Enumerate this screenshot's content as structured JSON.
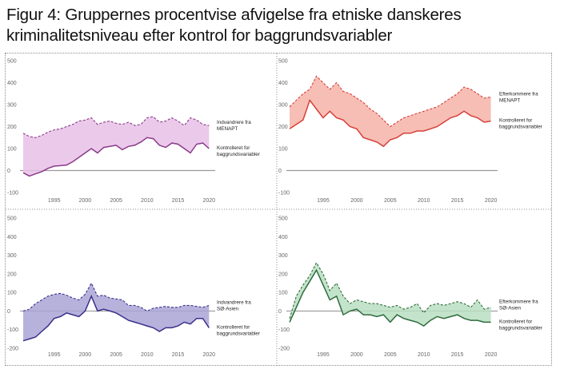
{
  "page_title": "Figur 4: Gruppernes procentvise afvigelse fra etniske danskeres kriminalitetsniveau efter kontrol for baggrundsvariabler",
  "chart_data": [
    {
      "type": "area",
      "panel": "top-left",
      "color": "#8a3a8a",
      "fill": "#e8bfe6",
      "x_ticks": [
        "1995",
        "2000",
        "2005",
        "2010",
        "2015",
        "2020"
      ],
      "y_ticks": [
        "500",
        "400",
        "300",
        "200",
        "100",
        "0",
        "-100"
      ],
      "ylim": [
        -100,
        500
      ],
      "xlim": [
        1990,
        2021
      ],
      "years": [
        1990,
        1991,
        1992,
        1993,
        1994,
        1995,
        1996,
        1997,
        1998,
        1999,
        2000,
        2001,
        2002,
        2003,
        2004,
        2005,
        2006,
        2007,
        2008,
        2009,
        2010,
        2011,
        2012,
        2013,
        2014,
        2015,
        2016,
        2017,
        2018,
        2019,
        2020
      ],
      "series": [
        {
          "name": "Indvandrere fra MENAPT",
          "style": "dashed",
          "values": [
            170,
            155,
            150,
            160,
            175,
            185,
            190,
            200,
            210,
            225,
            230,
            240,
            210,
            220,
            225,
            215,
            210,
            220,
            205,
            210,
            240,
            245,
            220,
            225,
            240,
            225,
            205,
            240,
            230,
            210,
            205
          ]
        },
        {
          "name": "Kontrolleret for baggrundsvariabler",
          "style": "solid",
          "values": [
            -10,
            -25,
            -15,
            -5,
            10,
            20,
            22,
            25,
            40,
            60,
            80,
            100,
            80,
            105,
            110,
            115,
            95,
            110,
            115,
            130,
            150,
            145,
            115,
            105,
            125,
            120,
            100,
            80,
            120,
            125,
            100
          ]
        }
      ],
      "label_top": [
        "Indvandrere fra",
        "MENAPT"
      ],
      "label_bottom": [
        "Kontrolleret for",
        "baggrundsvariabler"
      ]
    },
    {
      "type": "area",
      "panel": "top-right",
      "color": "#d6403a",
      "fill": "#f6b3a8",
      "x_ticks": [
        "1995",
        "2000",
        "2005",
        "2010",
        "2015",
        "2020"
      ],
      "y_ticks": [
        "500",
        "400",
        "300",
        "200",
        "100",
        "0",
        "-100"
      ],
      "ylim": [
        -100,
        500
      ],
      "xlim": [
        1990,
        2021
      ],
      "years": [
        1990,
        1991,
        1992,
        1993,
        1994,
        1995,
        1996,
        1997,
        1998,
        1999,
        2000,
        2001,
        2002,
        2003,
        2004,
        2005,
        2006,
        2007,
        2008,
        2009,
        2010,
        2011,
        2012,
        2013,
        2014,
        2015,
        2016,
        2017,
        2018,
        2019,
        2020
      ],
      "series": [
        {
          "name": "Efterkommere fra MENAPT",
          "style": "dashed",
          "values": [
            290,
            320,
            350,
            370,
            430,
            400,
            370,
            400,
            360,
            350,
            330,
            310,
            280,
            260,
            230,
            200,
            220,
            240,
            250,
            260,
            270,
            280,
            290,
            310,
            330,
            350,
            380,
            370,
            350,
            330,
            335
          ]
        },
        {
          "name": "Kontrolleret for baggrundsvariabler",
          "style": "solid",
          "values": [
            190,
            210,
            230,
            320,
            280,
            240,
            270,
            240,
            230,
            200,
            190,
            150,
            140,
            130,
            110,
            140,
            150,
            170,
            170,
            180,
            180,
            190,
            200,
            220,
            240,
            250,
            270,
            250,
            240,
            220,
            225
          ]
        }
      ],
      "label_top": [
        "Efterkommere fra",
        "MENAPT"
      ],
      "label_bottom": [
        "Kontrolleret for",
        "baggrundsvariabler"
      ]
    },
    {
      "type": "area",
      "panel": "bottom-left",
      "color": "#3a2f8a",
      "fill": "#a9a4d6",
      "x_ticks": [
        "1995",
        "2000",
        "2005",
        "2010",
        "2015",
        "2020"
      ],
      "y_ticks": [
        "500",
        "400",
        "300",
        "200",
        "100",
        "0",
        "-100",
        "-200"
      ],
      "ylim": [
        -200,
        500
      ],
      "xlim": [
        1990,
        2021
      ],
      "years": [
        1990,
        1991,
        1992,
        1993,
        1994,
        1995,
        1996,
        1997,
        1998,
        1999,
        2000,
        2001,
        2002,
        2003,
        2004,
        2005,
        2006,
        2007,
        2008,
        2009,
        2010,
        2011,
        2012,
        2013,
        2014,
        2015,
        2016,
        2017,
        2018,
        2019,
        2020
      ],
      "series": [
        {
          "name": "Indvandrere fra SØ-Asien",
          "style": "dashed",
          "values": [
            0,
            10,
            40,
            60,
            80,
            90,
            95,
            85,
            70,
            60,
            90,
            150,
            80,
            85,
            70,
            65,
            60,
            30,
            30,
            20,
            0,
            15,
            20,
            25,
            20,
            20,
            30,
            30,
            25,
            20,
            30
          ]
        },
        {
          "name": "Kontrolleret for baggrundsvariabler",
          "style": "solid",
          "values": [
            -160,
            -150,
            -140,
            -110,
            -80,
            -40,
            -30,
            -10,
            -20,
            -30,
            0,
            80,
            0,
            10,
            0,
            -10,
            -30,
            -50,
            -60,
            -70,
            -80,
            -90,
            -110,
            -90,
            -90,
            -80,
            -60,
            -70,
            -40,
            -40,
            -90
          ]
        }
      ],
      "label_top": [
        "Indvandrere fra",
        "SØ-Asien"
      ],
      "label_bottom": [
        "Kontrolleret for",
        "baggrundsvariabler"
      ]
    },
    {
      "type": "area",
      "panel": "bottom-right",
      "color": "#2f6b3f",
      "fill": "#b9dfc1",
      "x_ticks": [
        "1995",
        "2000",
        "2005",
        "2010",
        "2015",
        "2020"
      ],
      "y_ticks": [
        "500",
        "400",
        "300",
        "200",
        "100",
        "0",
        "-100",
        "-200"
      ],
      "ylim": [
        -200,
        500
      ],
      "xlim": [
        1990,
        2021
      ],
      "years": [
        1990,
        1991,
        1992,
        1993,
        1994,
        1995,
        1996,
        1997,
        1998,
        1999,
        2000,
        2001,
        2002,
        2003,
        2004,
        2005,
        2006,
        2007,
        2008,
        2009,
        2010,
        2011,
        2012,
        2013,
        2014,
        2015,
        2016,
        2017,
        2018,
        2019,
        2020
      ],
      "series": [
        {
          "name": "Efterkommere fra SØ-Asien",
          "style": "dashed",
          "values": [
            -40,
            80,
            140,
            190,
            260,
            200,
            110,
            150,
            80,
            40,
            60,
            50,
            40,
            40,
            30,
            20,
            30,
            10,
            20,
            40,
            -10,
            30,
            40,
            30,
            40,
            50,
            40,
            20,
            60,
            10,
            20
          ]
        },
        {
          "name": "Kontrolleret for baggrundsvariabler",
          "style": "solid",
          "values": [
            -60,
            20,
            100,
            160,
            220,
            140,
            60,
            80,
            -20,
            0,
            10,
            -20,
            -20,
            -30,
            -20,
            -60,
            -20,
            -40,
            -50,
            -60,
            -80,
            -50,
            -30,
            -40,
            -30,
            -20,
            -40,
            -50,
            -50,
            -60,
            -60
          ]
        }
      ],
      "label_top": [
        "Efterkommere fra",
        "SØ-Asien"
      ],
      "label_bottom": [
        "Kontrolleret for",
        "baggrundsvariabler"
      ]
    }
  ]
}
